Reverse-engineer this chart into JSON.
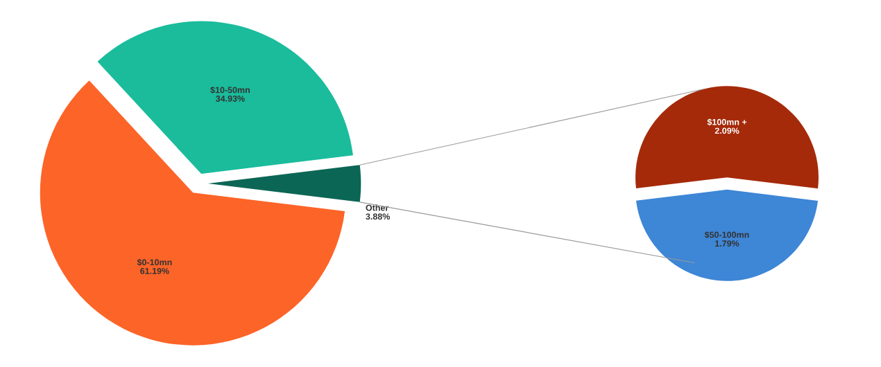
{
  "chart_data": [
    {
      "type": "pie",
      "categories": [
        "Other",
        "$10-50mn",
        "$0-10mn"
      ],
      "values": [
        3.88,
        34.93,
        61.19
      ],
      "colors": [
        "#0b6655",
        "#1abc9c",
        "#fd6428"
      ],
      "value_labels": [
        "3.88%",
        "34.93%",
        "61.19%"
      ]
    },
    {
      "type": "pie",
      "categories": [
        "$100mn +",
        "$50-100mn"
      ],
      "values": [
        2.09,
        1.79
      ],
      "colors": [
        "#a52a0a",
        "#3e86d6"
      ],
      "value_labels": [
        "2.09%",
        "1.79%"
      ]
    }
  ]
}
